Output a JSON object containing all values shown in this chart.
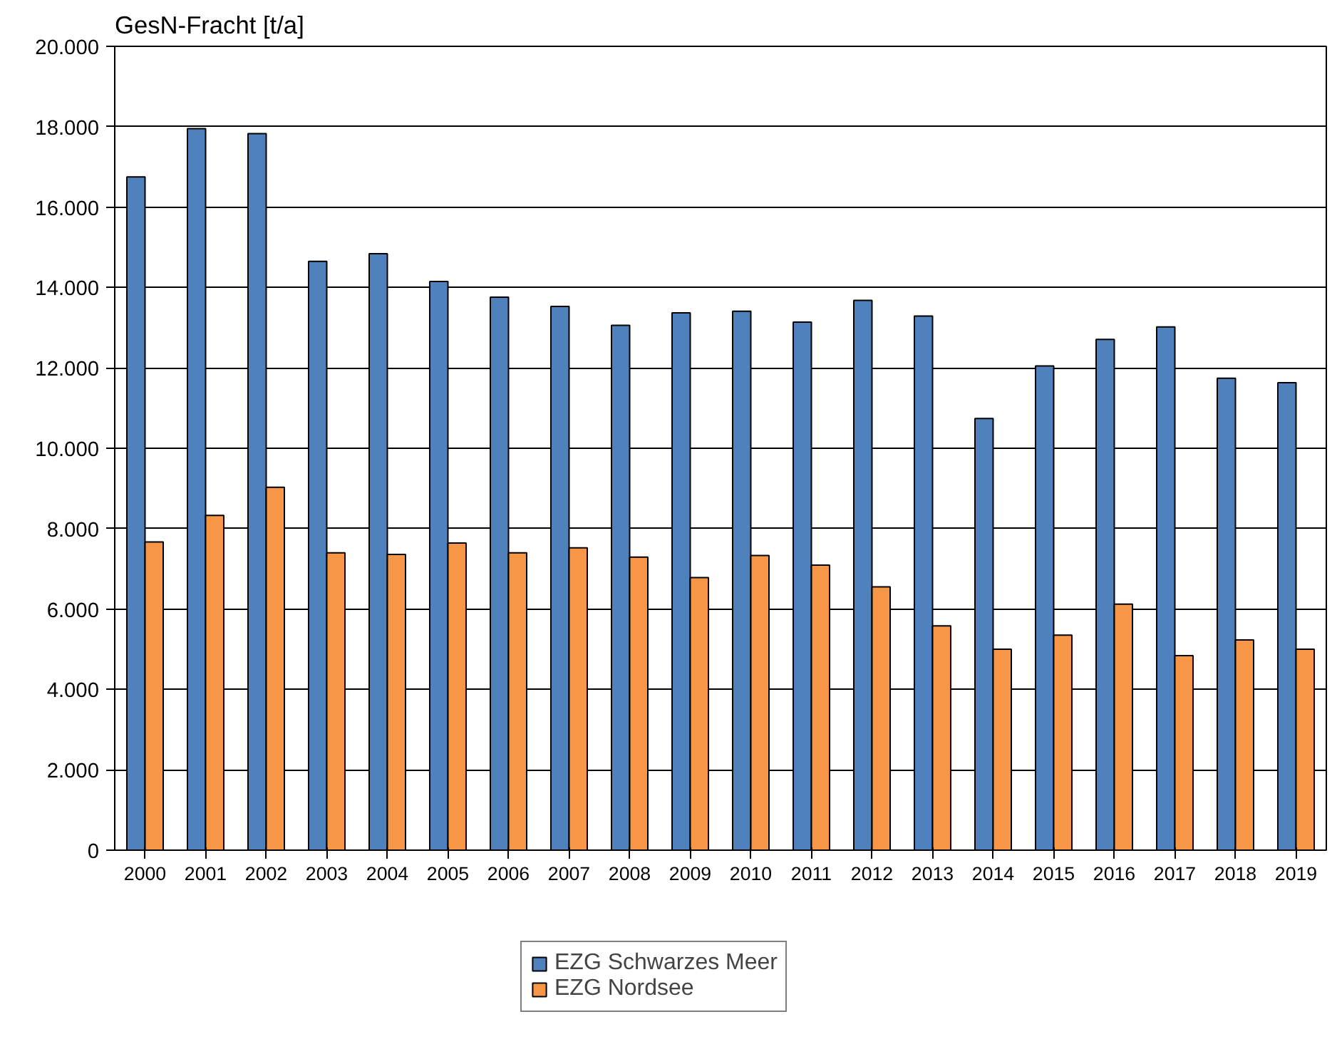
{
  "chart_data": {
    "type": "bar",
    "ylabel": "GesN-Fracht [t/a]",
    "categories": [
      "2000",
      "2001",
      "2002",
      "2003",
      "2004",
      "2005",
      "2006",
      "2007",
      "2008",
      "2009",
      "2010",
      "2011",
      "2012",
      "2013",
      "2014",
      "2015",
      "2016",
      "2017",
      "2018",
      "2019"
    ],
    "series": [
      {
        "name": "EZG Schwarzes Meer",
        "color": "#4f81bd",
        "values": [
          16750,
          17950,
          17830,
          14650,
          14840,
          14150,
          13760,
          13530,
          13060,
          13370,
          13410,
          13140,
          13680,
          13290,
          10740,
          12050,
          12710,
          13020,
          11740,
          11630
        ]
      },
      {
        "name": "EZG Nordsee",
        "color": "#f79646",
        "values": [
          7670,
          8330,
          9030,
          7400,
          7360,
          7640,
          7400,
          7520,
          7290,
          6780,
          7330,
          7090,
          6550,
          5580,
          5000,
          5350,
          6120,
          4840,
          5230,
          5000
        ]
      }
    ],
    "ylim": [
      0,
      20000
    ],
    "yticks": [
      0,
      {
        "value": 2000,
        "label": "2.000"
      },
      {
        "value": 4000,
        "label": "4.000"
      },
      {
        "value": 6000,
        "label": "6.000"
      },
      {
        "value": 8000,
        "label": "8.000"
      },
      {
        "value": 10000,
        "label": "10.000"
      },
      {
        "value": 12000,
        "label": "12.000"
      },
      {
        "value": 14000,
        "label": "14.000"
      },
      {
        "value": 16000,
        "label": "16.000"
      },
      {
        "value": 18000,
        "label": "18.000"
      },
      {
        "value": 20000,
        "label": "20.000"
      }
    ],
    "grid": "y",
    "legend": "bottom"
  }
}
